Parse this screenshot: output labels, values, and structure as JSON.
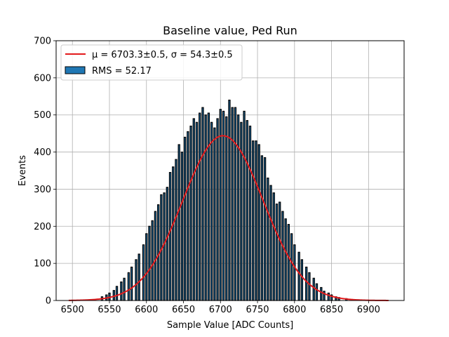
{
  "chart_data": {
    "type": "bar",
    "title": "Baseline value, Ped Run",
    "xlabel": "Sample Value [ADC Counts]",
    "ylabel": "Events",
    "xlim": [
      6478,
      6948
    ],
    "ylim": [
      0,
      700
    ],
    "x_ticks": [
      "6500",
      "6550",
      "6600",
      "6650",
      "6700",
      "6750",
      "6800",
      "6850",
      "6900"
    ],
    "y_ticks": [
      "0",
      "100",
      "200",
      "300",
      "400",
      "500",
      "600",
      "700"
    ],
    "grid": true,
    "legend_position": "top-left",
    "histogram": {
      "name": "RMS = 52.17",
      "bin_width": 2,
      "color": "#1f77b4",
      "edge_color": "#000000",
      "centers": [
        6540,
        6546,
        6550,
        6556,
        6560,
        6566,
        6570,
        6576,
        6580,
        6586,
        6590,
        6596,
        6600,
        6604,
        6608,
        6612,
        6616,
        6620,
        6624,
        6628,
        6632,
        6636,
        6640,
        6644,
        6648,
        6652,
        6656,
        6660,
        6664,
        6668,
        6672,
        6676,
        6680,
        6684,
        6688,
        6692,
        6696,
        6700,
        6704,
        6708,
        6712,
        6716,
        6720,
        6724,
        6728,
        6732,
        6736,
        6740,
        6744,
        6748,
        6752,
        6756,
        6760,
        6764,
        6768,
        6772,
        6776,
        6780,
        6784,
        6788,
        6792,
        6796,
        6800,
        6806,
        6810,
        6816,
        6820,
        6826,
        6830,
        6836,
        6840,
        6846,
        6850,
        6856,
        6860,
        6870
      ],
      "counts": [
        10,
        15,
        20,
        27,
        38,
        50,
        60,
        75,
        90,
        110,
        125,
        150,
        180,
        200,
        215,
        240,
        258,
        285,
        290,
        305,
        345,
        360,
        380,
        420,
        400,
        440,
        455,
        470,
        490,
        480,
        505,
        520,
        500,
        505,
        480,
        465,
        490,
        515,
        510,
        495,
        540,
        520,
        520,
        500,
        480,
        510,
        485,
        470,
        430,
        430,
        420,
        390,
        385,
        330,
        310,
        290,
        260,
        265,
        240,
        220,
        205,
        180,
        150,
        130,
        110,
        90,
        75,
        60,
        45,
        35,
        25,
        20,
        15,
        10,
        8,
        5
      ]
    },
    "fit": {
      "name": "μ = 6703.3±0.5, σ = 54.3±0.5",
      "mu": 6703.3,
      "sigma": 54.3,
      "amplitude": 444,
      "x_range": [
        6495,
        6927
      ],
      "color": "#e31a1c"
    }
  },
  "legend": {
    "fit_label": "μ = 6703.3±0.5, σ = 54.3±0.5",
    "hist_label": "RMS = 52.17"
  }
}
